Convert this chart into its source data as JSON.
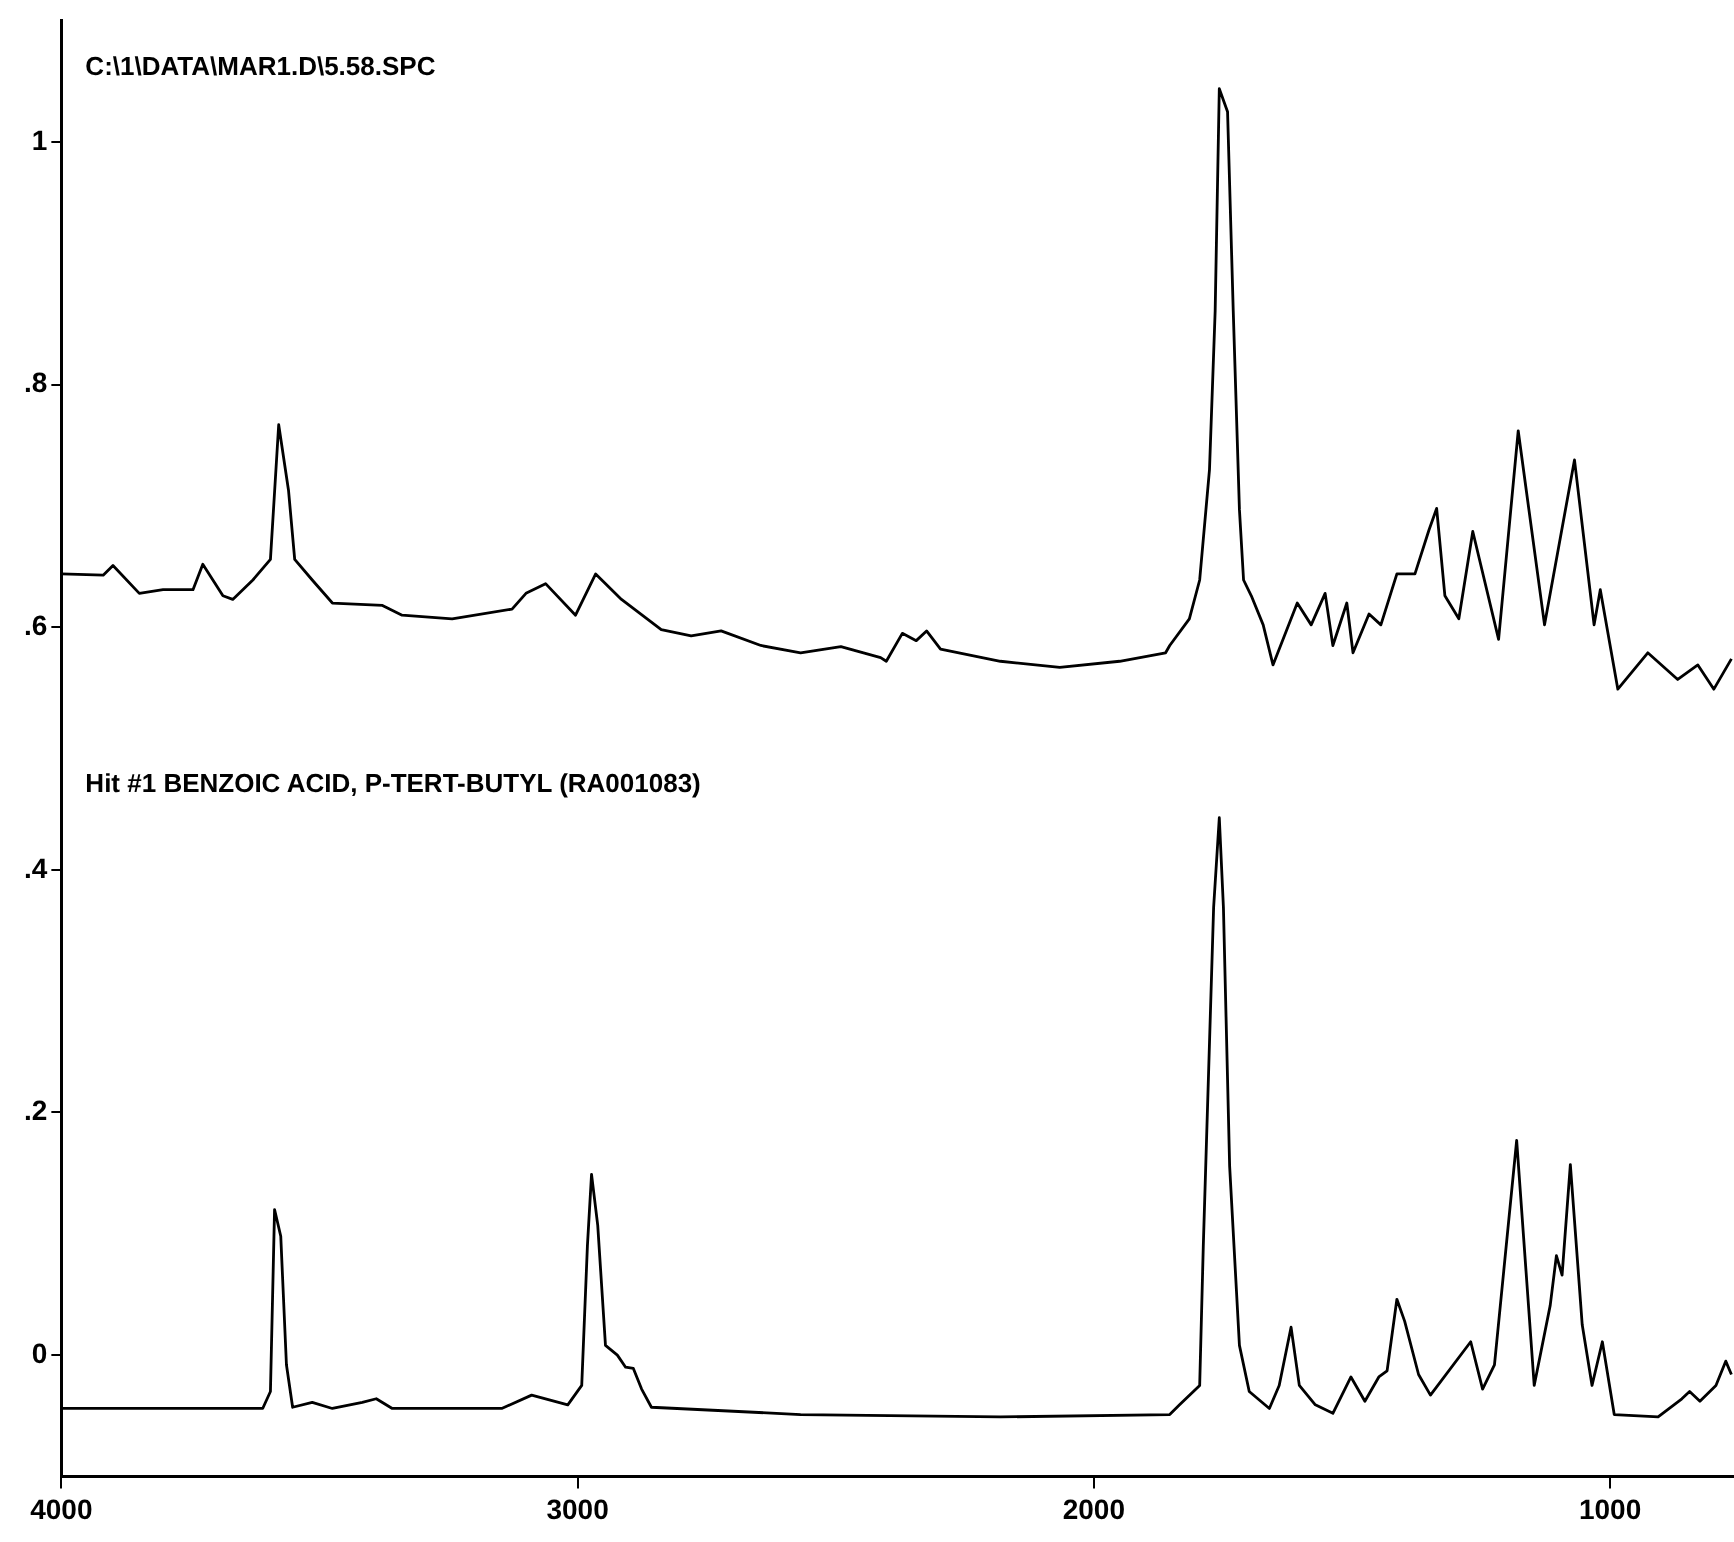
{
  "chart_data": {
    "type": "line",
    "title": "C:\\1\\DATA\\MAR1.D\\5.58.SPC",
    "xlim": [
      4000,
      760
    ],
    "xticks": [
      4000,
      3000,
      2000,
      1000
    ],
    "ylim": [
      -0.1,
      1.1
    ],
    "yticks": [
      0,
      {
        "value": 0.2,
        "label": ".2"
      },
      {
        "value": 0.4,
        "label": ".4"
      },
      {
        "value": 0.6,
        "label": ".6"
      },
      {
        "value": 0.8,
        "label": ".8"
      },
      1
    ],
    "grid": false,
    "legend": false,
    "marker": "none",
    "line_style": "solid",
    "series": [
      {
        "name": null,
        "color": "#000000",
        "x": [
          4000,
          3919,
          3900,
          3849,
          3803,
          3745,
          3726,
          3687,
          3668,
          3629,
          3595,
          3579,
          3560,
          3548,
          3514,
          3475,
          3378,
          3340,
          3243,
          3127,
          3100,
          3062,
          3004,
          2965,
          2915,
          2838,
          2780,
          2722,
          2645,
          2568,
          2490,
          2413,
          2402,
          2371,
          2344,
          2324,
          2297,
          2181,
          2066,
          1950,
          1861,
          1853,
          1815,
          1795,
          1776,
          1765,
          1757,
          1741,
          1730,
          1718,
          1710,
          1695,
          1672,
          1653,
          1606,
          1579,
          1552,
          1537,
          1510,
          1498,
          1467,
          1444,
          1413,
          1378,
          1351,
          1336,
          1320,
          1293,
          1266,
          1216,
          1178,
          1127,
          1069,
          1031,
          1019,
          985,
          927,
          869,
          830,
          799,
          765
        ],
        "values": [
          0.644,
          0.643,
          0.651,
          0.628,
          0.631,
          0.631,
          0.652,
          0.626,
          0.623,
          0.639,
          0.656,
          0.767,
          0.713,
          0.656,
          0.639,
          0.62,
          0.618,
          0.61,
          0.607,
          0.615,
          0.628,
          0.636,
          0.61,
          0.644,
          0.623,
          0.598,
          0.593,
          0.597,
          0.585,
          0.579,
          0.584,
          0.575,
          0.572,
          0.595,
          0.589,
          0.597,
          0.582,
          0.572,
          0.567,
          0.572,
          0.579,
          0.585,
          0.607,
          0.639,
          0.73,
          0.861,
          1.044,
          1.025,
          0.861,
          0.697,
          0.639,
          0.626,
          0.602,
          0.569,
          0.62,
          0.602,
          0.628,
          0.585,
          0.62,
          0.579,
          0.611,
          0.602,
          0.644,
          0.644,
          0.68,
          0.698,
          0.626,
          0.607,
          0.679,
          0.59,
          0.762,
          0.602,
          0.738,
          0.602,
          0.631,
          0.549,
          0.579,
          0.557,
          0.569,
          0.549,
          0.574
        ]
      },
      {
        "name": "Hit #1 BENZOIC ACID, P-TERT-BUTYL (RA001083)",
        "color": "#000000",
        "x": [
          4000,
          3726,
          3610,
          3595,
          3587,
          3575,
          3564,
          3552,
          3514,
          3475,
          3417,
          3390,
          3359,
          3147,
          3089,
          3019,
          2992,
          2981,
          2973,
          2961,
          2946,
          2923,
          2907,
          2892,
          2876,
          2857,
          2568,
          2181,
          1853,
          1834,
          1795,
          1788,
          1768,
          1757,
          1749,
          1737,
          1718,
          1699,
          1660,
          1641,
          1618,
          1602,
          1571,
          1537,
          1502,
          1475,
          1448,
          1432,
          1413,
          1398,
          1371,
          1348,
          1270,
          1247,
          1224,
          1181,
          1147,
          1116,
          1104,
          1093,
          1077,
          1054,
          1035,
          1015,
          992,
          907,
          861,
          846,
          826,
          795,
          776,
          765
        ],
        "values": [
          -0.044,
          -0.044,
          -0.044,
          -0.03,
          0.12,
          0.098,
          -0.008,
          -0.043,
          -0.039,
          -0.044,
          -0.039,
          -0.036,
          -0.044,
          -0.044,
          -0.033,
          -0.041,
          -0.025,
          0.09,
          0.149,
          0.107,
          0.008,
          0,
          -0.01,
          -0.011,
          -0.028,
          -0.043,
          -0.049,
          -0.051,
          -0.049,
          -0.041,
          -0.025,
          0.09,
          0.369,
          0.443,
          0.369,
          0.156,
          0.008,
          -0.03,
          -0.044,
          -0.025,
          0.023,
          -0.025,
          -0.041,
          -0.048,
          -0.018,
          -0.038,
          -0.018,
          -0.013,
          0.046,
          0.028,
          -0.016,
          -0.033,
          0.011,
          -0.028,
          -0.008,
          0.177,
          -0.025,
          0.041,
          0.082,
          0.066,
          0.157,
          0.025,
          -0.025,
          0.011,
          -0.049,
          -0.051,
          -0.036,
          -0.03,
          -0.038,
          -0.025,
          -0.005,
          -0.016
        ]
      }
    ]
  }
}
